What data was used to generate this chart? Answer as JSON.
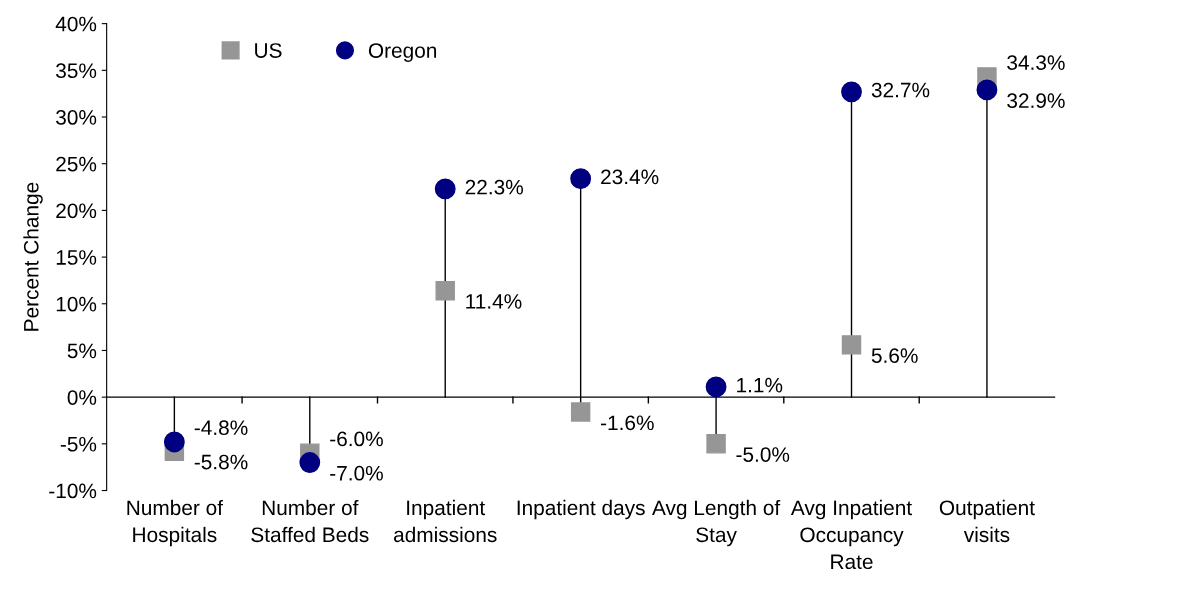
{
  "chart_data": {
    "type": "lollipop",
    "ylabel": "Percent Change",
    "categories": [
      "Number of\nHospitals",
      "Number of\nStaffed Beds",
      "Inpatient\nadmissions",
      "Inpatient days",
      "Avg Length of\nStay",
      "Avg Inpatient\nOccupancy\nRate",
      "Outpatient\nvisits"
    ],
    "series": [
      {
        "name": "US",
        "color": "#969696",
        "marker": "square",
        "values": [
          -5.8,
          -6.0,
          11.4,
          -1.6,
          -5.0,
          5.6,
          34.3
        ],
        "value_labels": [
          "-5.8%",
          "-6.0%",
          "11.4%",
          "-1.6%",
          "-5.0%",
          "5.6%",
          "34.3%"
        ]
      },
      {
        "name": "Oregon",
        "color": "#000080",
        "marker": "circle",
        "values": [
          -4.8,
          -7.0,
          22.3,
          23.4,
          1.1,
          32.7,
          32.9
        ],
        "value_labels": [
          "-4.8%",
          "-7.0%",
          "22.3%",
          "23.4%",
          "1.1%",
          "32.7%",
          "32.9%"
        ]
      }
    ],
    "ylim": [
      -10,
      40
    ],
    "yticks": [
      {
        "value": -10,
        "label": "-10%"
      },
      {
        "value": -5,
        "label": "-5%"
      },
      {
        "value": 0,
        "label": "0%"
      },
      {
        "value": 5,
        "label": "5%"
      },
      {
        "value": 10,
        "label": "10%"
      },
      {
        "value": 15,
        "label": "15%"
      },
      {
        "value": 20,
        "label": "20%"
      },
      {
        "value": 25,
        "label": "25%"
      },
      {
        "value": 30,
        "label": "30%"
      },
      {
        "value": 35,
        "label": "35%"
      },
      {
        "value": 40,
        "label": "40%"
      }
    ],
    "legend": "top left"
  }
}
